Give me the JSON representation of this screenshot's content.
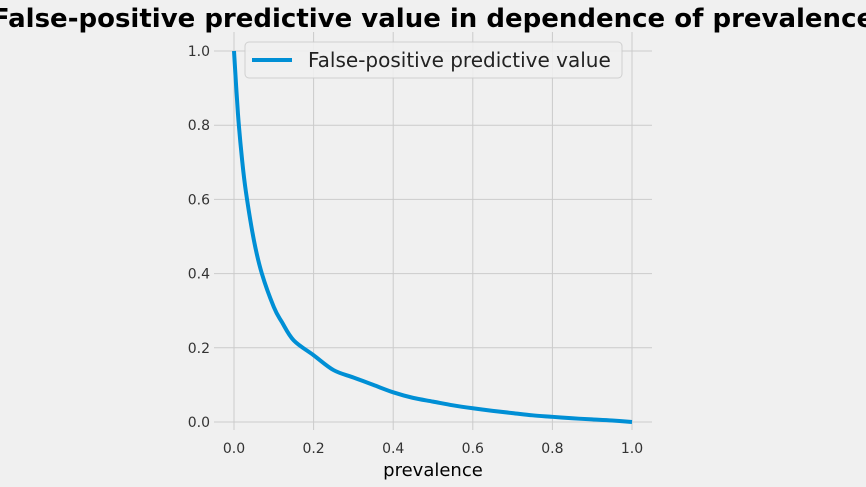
{
  "chart_data": {
    "type": "line",
    "title": "False-positive predictive value in dependence of prevalence",
    "xlabel": "prevalence",
    "ylabel": "",
    "xlim": [
      0.0,
      1.0
    ],
    "ylim": [
      0.0,
      1.0
    ],
    "xticks": [
      "0.0",
      "0.2",
      "0.4",
      "0.6",
      "0.8",
      "1.0"
    ],
    "yticks": [
      "0.0",
      "0.2",
      "0.4",
      "0.6",
      "0.8",
      "1.0"
    ],
    "grid": true,
    "legend": {
      "position": "upper-right",
      "entries": [
        "False-positive predictive value"
      ]
    },
    "series": [
      {
        "name": "False-positive predictive value",
        "color": "#008fd5",
        "x": [
          0.0,
          0.01,
          0.02,
          0.03,
          0.05,
          0.07,
          0.1,
          0.12,
          0.15,
          0.2,
          0.25,
          0.3,
          0.35,
          0.4,
          0.45,
          0.5,
          0.55,
          0.6,
          0.65,
          0.7,
          0.75,
          0.8,
          0.85,
          0.9,
          0.95,
          1.0
        ],
        "y": [
          1.0,
          0.83,
          0.71,
          0.62,
          0.49,
          0.4,
          0.31,
          0.27,
          0.22,
          0.18,
          0.14,
          0.12,
          0.1,
          0.08,
          0.065,
          0.055,
          0.045,
          0.037,
          0.03,
          0.024,
          0.018,
          0.014,
          0.01,
          0.007,
          0.004,
          0.0
        ]
      }
    ]
  }
}
